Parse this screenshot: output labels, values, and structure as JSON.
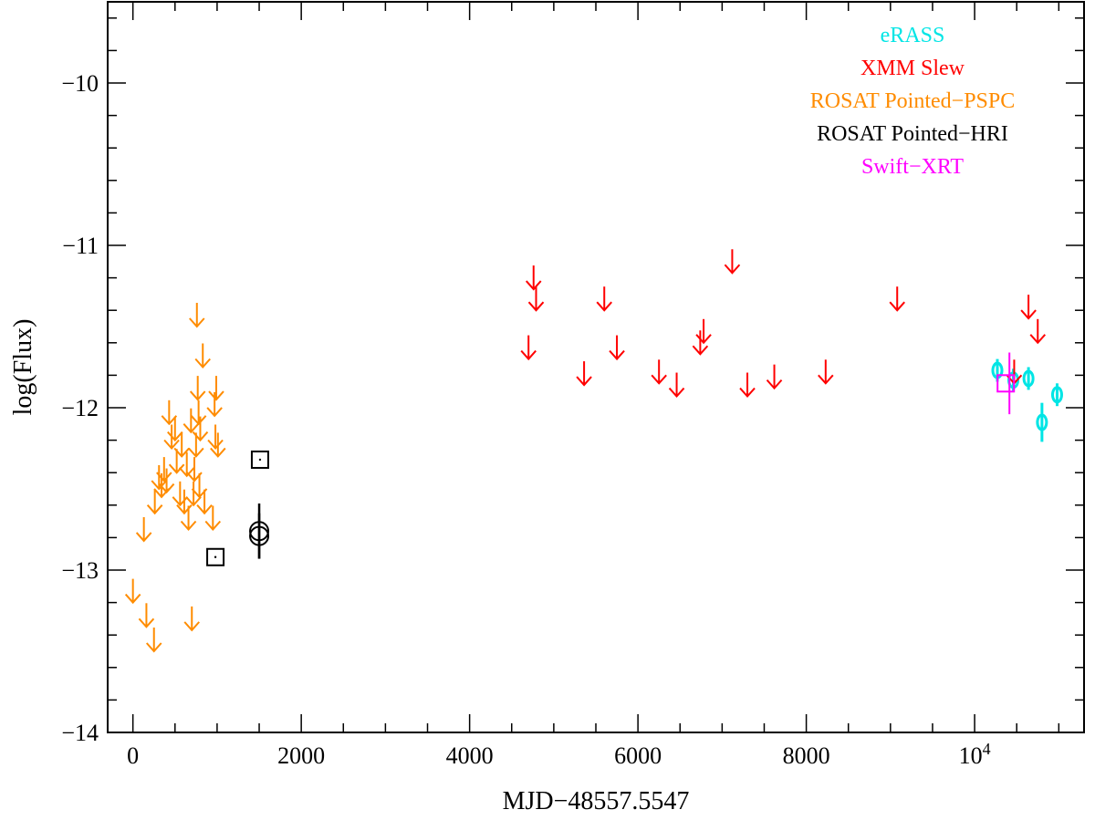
{
  "chart_data": {
    "type": "scatter",
    "xlabel": "MJD−48557.5547",
    "ylabel": "log(Flux)",
    "xlim": [
      -300,
      11300
    ],
    "ylim": [
      -14,
      -9.5
    ],
    "x_ticks": [
      {
        "value": 0,
        "label": "0"
      },
      {
        "value": 2000,
        "label": "2000"
      },
      {
        "value": 4000,
        "label": "4000"
      },
      {
        "value": 6000,
        "label": "6000"
      },
      {
        "value": 8000,
        "label": "8000"
      },
      {
        "value": 10000,
        "label": "10",
        "sup": "4"
      }
    ],
    "y_ticks": [
      {
        "value": -14,
        "label": "−14"
      },
      {
        "value": -13,
        "label": "−13"
      },
      {
        "value": -12,
        "label": "−12"
      },
      {
        "value": -11,
        "label": "−11"
      },
      {
        "value": -10,
        "label": "−10"
      }
    ],
    "legend_position": "top-right",
    "series": [
      {
        "name": "eRASS",
        "color": "#00e5e5",
        "marker": "ellipse-errorbar",
        "points": [
          {
            "x": 10270,
            "y": -11.77,
            "err": 0.07
          },
          {
            "x": 10460,
            "y": -11.83,
            "err": 0.07
          },
          {
            "x": 10640,
            "y": -11.82,
            "err": 0.07
          },
          {
            "x": 10800,
            "y": -12.09,
            "err": 0.12
          },
          {
            "x": 10980,
            "y": -11.92,
            "err": 0.07
          }
        ]
      },
      {
        "name": "XMM Slew",
        "color": "#ff0000",
        "marker": "upper-limit",
        "points": [
          {
            "x": 4700,
            "y": -11.7
          },
          {
            "x": 4760,
            "y": -11.27
          },
          {
            "x": 4790,
            "y": -11.4
          },
          {
            "x": 5360,
            "y": -11.86
          },
          {
            "x": 5600,
            "y": -11.4
          },
          {
            "x": 5750,
            "y": -11.7
          },
          {
            "x": 6250,
            "y": -11.85
          },
          {
            "x": 6460,
            "y": -11.93
          },
          {
            "x": 6740,
            "y": -11.67
          },
          {
            "x": 6780,
            "y": -11.6
          },
          {
            "x": 7120,
            "y": -11.17
          },
          {
            "x": 7300,
            "y": -11.93
          },
          {
            "x": 7620,
            "y": -11.88
          },
          {
            "x": 8230,
            "y": -11.85
          },
          {
            "x": 9080,
            "y": -11.4
          },
          {
            "x": 10470,
            "y": -11.85
          },
          {
            "x": 10640,
            "y": -11.45
          },
          {
            "x": 10750,
            "y": -11.6
          }
        ]
      },
      {
        "name": "ROSAT Pointed−PSPC",
        "color": "#ff8c00",
        "marker": "upper-limit",
        "points": [
          {
            "x": 0,
            "y": -13.2
          },
          {
            "x": 130,
            "y": -12.82
          },
          {
            "x": 160,
            "y": -13.35
          },
          {
            "x": 250,
            "y": -13.5
          },
          {
            "x": 260,
            "y": -12.65
          },
          {
            "x": 310,
            "y": -12.5
          },
          {
            "x": 340,
            "y": -12.55
          },
          {
            "x": 370,
            "y": -12.45
          },
          {
            "x": 400,
            "y": -12.52
          },
          {
            "x": 430,
            "y": -12.1
          },
          {
            "x": 460,
            "y": -12.25
          },
          {
            "x": 500,
            "y": -12.2
          },
          {
            "x": 520,
            "y": -12.4
          },
          {
            "x": 560,
            "y": -12.6
          },
          {
            "x": 580,
            "y": -12.3
          },
          {
            "x": 610,
            "y": -12.65
          },
          {
            "x": 640,
            "y": -12.42
          },
          {
            "x": 660,
            "y": -12.75
          },
          {
            "x": 690,
            "y": -12.15
          },
          {
            "x": 700,
            "y": -13.37
          },
          {
            "x": 720,
            "y": -12.6
          },
          {
            "x": 730,
            "y": -12.45
          },
          {
            "x": 750,
            "y": -12.3
          },
          {
            "x": 760,
            "y": -11.5
          },
          {
            "x": 770,
            "y": -11.95
          },
          {
            "x": 780,
            "y": -12.1
          },
          {
            "x": 790,
            "y": -12.55
          },
          {
            "x": 800,
            "y": -12.2
          },
          {
            "x": 830,
            "y": -11.75
          },
          {
            "x": 850,
            "y": -12.65
          },
          {
            "x": 950,
            "y": -12.75
          },
          {
            "x": 970,
            "y": -12.05
          },
          {
            "x": 980,
            "y": -12.25
          },
          {
            "x": 990,
            "y": -11.95
          },
          {
            "x": 1010,
            "y": -12.3
          }
        ]
      },
      {
        "name": "ROSAT Pointed−HRI",
        "color": "#000000",
        "marker": "mixed",
        "points": [
          {
            "x": 980,
            "y": -12.92,
            "marker": "square"
          },
          {
            "x": 1510,
            "y": -12.32,
            "marker": "square"
          },
          {
            "x": 1500,
            "y": -12.76,
            "marker": "circle",
            "err": 0.17
          },
          {
            "x": 1500,
            "y": -12.79,
            "marker": "circle",
            "err": 0.14
          }
        ]
      },
      {
        "name": "Swift−XRT",
        "color": "#ff00ff",
        "marker": "square-errorbar",
        "points": [
          {
            "x": 10370,
            "y": -11.85,
            "err": 0.19
          }
        ]
      }
    ]
  }
}
